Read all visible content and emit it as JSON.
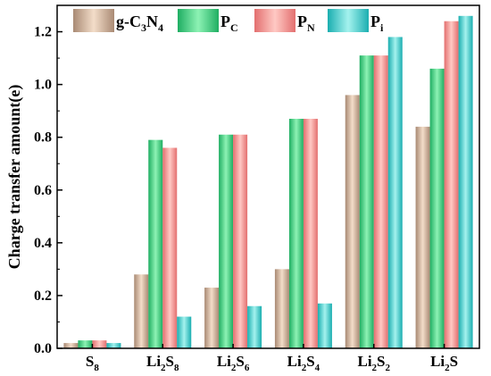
{
  "chart_data": {
    "type": "bar",
    "ylabel": "Charge transfer amount(e)",
    "xlabel": "",
    "ylim": [
      0,
      1.3
    ],
    "yticks": [
      0.0,
      0.2,
      0.4,
      0.6,
      0.8,
      1.0,
      1.2
    ],
    "ytick_labels": [
      "0.0",
      "0.2",
      "0.4",
      "0.6",
      "0.8",
      "1.0",
      "1.2"
    ],
    "grid": false,
    "legend_position": "top",
    "categories": [
      {
        "label": "S8",
        "parts": [
          {
            "t": "S"
          },
          {
            "t": "8",
            "sub": true
          }
        ]
      },
      {
        "label": "Li2S8",
        "parts": [
          {
            "t": "Li"
          },
          {
            "t": "2",
            "sub": true
          },
          {
            "t": "S"
          },
          {
            "t": "8",
            "sub": true
          }
        ]
      },
      {
        "label": "Li2S6",
        "parts": [
          {
            "t": "Li"
          },
          {
            "t": "2",
            "sub": true
          },
          {
            "t": "S"
          },
          {
            "t": "6",
            "sub": true
          }
        ]
      },
      {
        "label": "Li2S4",
        "parts": [
          {
            "t": "Li"
          },
          {
            "t": "2",
            "sub": true
          },
          {
            "t": "S"
          },
          {
            "t": "4",
            "sub": true
          }
        ]
      },
      {
        "label": "Li2S2",
        "parts": [
          {
            "t": "Li"
          },
          {
            "t": "2",
            "sub": true
          },
          {
            "t": "S"
          },
          {
            "t": "2",
            "sub": true
          }
        ]
      },
      {
        "label": "Li2S",
        "parts": [
          {
            "t": "Li"
          },
          {
            "t": "2",
            "sub": true
          },
          {
            "t": "S"
          }
        ]
      }
    ],
    "series": [
      {
        "name": "g-C3N4",
        "name_parts": [
          {
            "t": "g-C"
          },
          {
            "t": "3",
            "sub": true
          },
          {
            "t": "N"
          },
          {
            "t": "4",
            "sub": true
          }
        ],
        "color_dark": "#a98a74",
        "color_light": "#f3ddc9",
        "values": [
          0.02,
          0.28,
          0.23,
          0.3,
          0.96,
          0.84
        ]
      },
      {
        "name": "PC",
        "name_parts": [
          {
            "t": "P"
          },
          {
            "t": "C",
            "sub": true
          }
        ],
        "color_dark": "#1fae62",
        "color_light": "#8df2b4",
        "values": [
          0.03,
          0.79,
          0.81,
          0.87,
          1.11,
          1.06
        ]
      },
      {
        "name": "PN",
        "name_parts": [
          {
            "t": "P"
          },
          {
            "t": "N",
            "sub": true
          }
        ],
        "color_dark": "#e36f6f",
        "color_light": "#ffc9c4",
        "values": [
          0.03,
          0.76,
          0.81,
          0.87,
          1.11,
          1.24
        ]
      },
      {
        "name": "Pi",
        "name_parts": [
          {
            "t": "P"
          },
          {
            "t": "i",
            "sub": true
          }
        ],
        "color_dark": "#1aaeb0",
        "color_light": "#a4f2ee",
        "values": [
          0.02,
          0.12,
          0.16,
          0.17,
          1.18,
          1.26
        ]
      }
    ]
  }
}
